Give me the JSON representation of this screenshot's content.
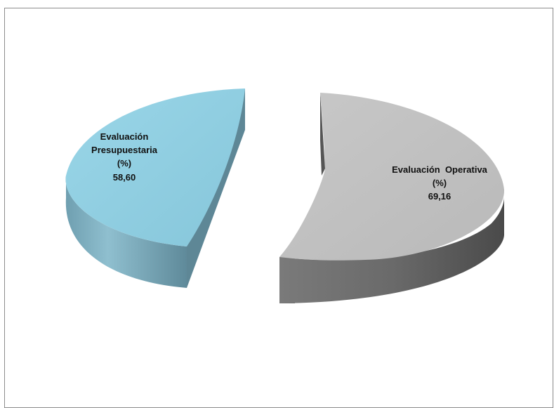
{
  "chart_data": {
    "type": "pie",
    "title": "",
    "slices": [
      {
        "label_lines": [
          "Evaluación",
          "Presupuestaria",
          "(%)"
        ],
        "value_text": "58,60",
        "value": 58.6,
        "color": "#8ecddf"
      },
      {
        "label_lines": [
          "Evaluación  Operativa",
          "(%)"
        ],
        "value_text": "69,16",
        "value": 69.16,
        "color": "#c0c0c0"
      }
    ],
    "legend": "none",
    "style": "3d-exploded"
  }
}
